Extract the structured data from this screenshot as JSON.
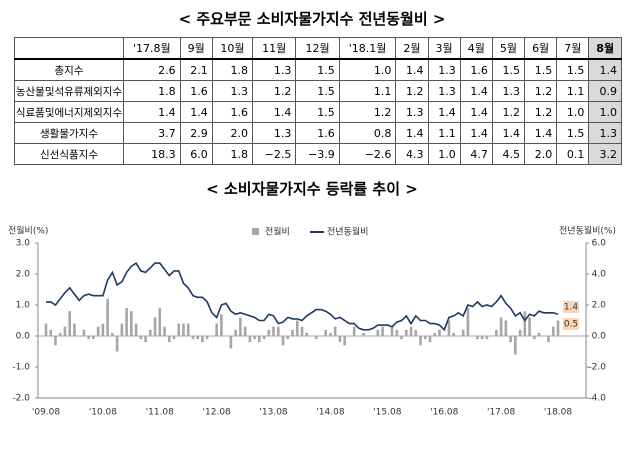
{
  "title": "< 주요부문 소비자물가지수 전년동월비 >",
  "table": {
    "header": [
      "'17.8월",
      "9월",
      "10월",
      "11월",
      "12월",
      "'18.1월",
      "2월",
      "3월",
      "4월",
      "5월",
      "6월",
      "7월",
      "8월"
    ],
    "rows": [
      [
        "총지수",
        "2.6",
        "2.1",
        "1.8",
        "1.3",
        "1.5",
        "1.0",
        "1.4",
        "1.3",
        "1.6",
        "1.5",
        "1.5",
        "1.5",
        "1.4"
      ],
      [
        "농산물및석유류제외지수",
        "1.8",
        "1.6",
        "1.3",
        "1.2",
        "1.5",
        "1.1",
        "1.2",
        "1.3",
        "1.4",
        "1.3",
        "1.2",
        "1.1",
        "0.9"
      ],
      [
        "식료품및에너지제외지수",
        "1.4",
        "1.4",
        "1.6",
        "1.4",
        "1.5",
        "1.2",
        "1.3",
        "1.4",
        "1.4",
        "1.2",
        "1.2",
        "1.0",
        "1.0"
      ],
      [
        "생활물가지수",
        "3.7",
        "2.9",
        "2.0",
        "1.3",
        "1.6",
        "0.8",
        "1.4",
        "1.1",
        "1.4",
        "1.4",
        "1.4",
        "1.5",
        "1.3"
      ],
      [
        "신선식품지수",
        "18.3",
        "6.0",
        "1.8",
        "−2.5",
        "−3.9",
        "−2.6",
        "4.3",
        "1.0",
        "4.7",
        "4.5",
        "2.0",
        "0.1",
        "3.2"
      ]
    ]
  },
  "chart_data": {
    "type": "bar-line",
    "title": "< 소비자물가지수 등락률 추이 >",
    "y_label": "전월비(%)",
    "y2_label": "전년동월비(%)",
    "categories": [
      "'09.08",
      null,
      null,
      null,
      null,
      null,
      null,
      null,
      null,
      null,
      null,
      null,
      "'10.08",
      null,
      null,
      null,
      null,
      null,
      null,
      null,
      null,
      null,
      null,
      null,
      "'11.08",
      null,
      null,
      null,
      null,
      null,
      null,
      null,
      null,
      null,
      null,
      null,
      "'12.08",
      null,
      null,
      null,
      null,
      null,
      null,
      null,
      null,
      null,
      null,
      null,
      "'13.08",
      null,
      null,
      null,
      null,
      null,
      null,
      null,
      null,
      null,
      null,
      null,
      "'14.08",
      null,
      null,
      null,
      null,
      null,
      null,
      null,
      null,
      null,
      null,
      null,
      "'15.08",
      null,
      null,
      null,
      null,
      null,
      null,
      null,
      null,
      null,
      null,
      null,
      "'16.08",
      null,
      null,
      null,
      null,
      null,
      null,
      null,
      null,
      null,
      null,
      null,
      "'17.08",
      null,
      null,
      null,
      null,
      null,
      null,
      null,
      null,
      null,
      null,
      null,
      "'18.08"
    ],
    "series": [
      {
        "name": "전월비",
        "color": "#a6a6a6",
        "type": "bar",
        "values": [
          0.4,
          0.2,
          -0.3,
          0.1,
          0.3,
          0.8,
          0.4,
          0.0,
          0.2,
          -0.1,
          -0.1,
          0.3,
          0.4,
          1.2,
          0.1,
          -0.5,
          0.4,
          0.9,
          0.8,
          0.4,
          -0.1,
          -0.2,
          0.2,
          0.6,
          0.9,
          0.3,
          -0.2,
          -0.1,
          0.4,
          0.4,
          0.4,
          -0.1,
          -0.1,
          -0.2,
          -0.1,
          0.0,
          0.4,
          0.7,
          0.0,
          -0.4,
          0.2,
          0.6,
          0.3,
          -0.2,
          -0.1,
          -0.2,
          -0.1,
          0.2,
          0.3,
          0.3,
          -0.3,
          -0.1,
          0.2,
          0.5,
          0.3,
          0.1,
          0.0,
          -0.1,
          0.0,
          0.2,
          0.1,
          0.3,
          -0.2,
          -0.3,
          0.0,
          0.3,
          0.0,
          0.1,
          0.0,
          0.0,
          0.2,
          0.3,
          0.0,
          0.3,
          0.2,
          -0.1,
          0.2,
          0.3,
          0.2,
          -0.3,
          -0.1,
          -0.2,
          0.1,
          0.2,
          0.0,
          0.5,
          0.1,
          0.0,
          0.2,
          0.9,
          0.0,
          -0.1,
          -0.1,
          -0.1,
          0.0,
          0.2,
          0.6,
          0.5,
          -0.2,
          -0.6,
          0.2,
          0.8,
          0.6,
          -0.1,
          0.1,
          0.0,
          -0.2,
          0.3,
          0.5
        ]
      },
      {
        "name": "전년동월비",
        "color": "#1f3864",
        "type": "line",
        "axis": "y2",
        "values": [
          2.2,
          2.2,
          2.0,
          2.4,
          2.8,
          3.1,
          2.7,
          2.3,
          2.6,
          2.7,
          2.6,
          2.6,
          2.6,
          3.6,
          4.1,
          3.3,
          3.5,
          4.1,
          4.5,
          4.7,
          4.2,
          4.1,
          4.4,
          4.7,
          4.7,
          4.3,
          3.9,
          4.2,
          4.2,
          3.4,
          3.1,
          2.6,
          2.5,
          2.5,
          2.2,
          1.5,
          1.2,
          2.0,
          2.1,
          1.6,
          1.4,
          1.5,
          1.4,
          1.3,
          1.2,
          1.0,
          1.0,
          1.4,
          1.3,
          0.8,
          0.9,
          1.2,
          1.1,
          1.1,
          1.0,
          1.3,
          1.5,
          1.7,
          1.7,
          1.6,
          1.4,
          1.1,
          1.2,
          1.0,
          0.8,
          0.8,
          0.5,
          0.4,
          0.4,
          0.5,
          0.7,
          0.7,
          0.7,
          0.6,
          0.9,
          1.0,
          1.3,
          0.8,
          1.3,
          1.0,
          1.0,
          0.8,
          0.8,
          0.7,
          0.4,
          1.2,
          1.3,
          1.5,
          1.3,
          2.0,
          1.9,
          2.2,
          1.9,
          2.0,
          1.9,
          2.2,
          2.6,
          2.1,
          1.8,
          1.3,
          1.5,
          1.0,
          1.4,
          1.3,
          1.6,
          1.5,
          1.5,
          1.5,
          1.4
        ]
      }
    ],
    "ylim": [
      -2,
      3
    ],
    "yticks": [
      {
        "value": 3,
        "label": "3.0"
      },
      {
        "value": 2,
        "label": "2.0"
      },
      {
        "value": 1,
        "label": "1.0"
      },
      {
        "value": 0,
        "label": "0.0"
      },
      {
        "value": -1,
        "label": "-1.0"
      },
      {
        "value": -2,
        "label": "-2.0"
      }
    ],
    "y2lim": [
      -4,
      6
    ],
    "y2ticks": [
      {
        "value": 6,
        "label": "6.0"
      },
      {
        "value": 4,
        "label": "4.0"
      },
      {
        "value": 2,
        "label": "2.0"
      },
      {
        "value": 0,
        "label": "0.0"
      },
      {
        "value": -2,
        "label": "-2.0"
      },
      {
        "value": -4,
        "label": "-4.0"
      }
    ],
    "annotations": [
      "1.4",
      "0.5"
    ],
    "annotation_color": "#fbd5b5",
    "legend": "top"
  }
}
